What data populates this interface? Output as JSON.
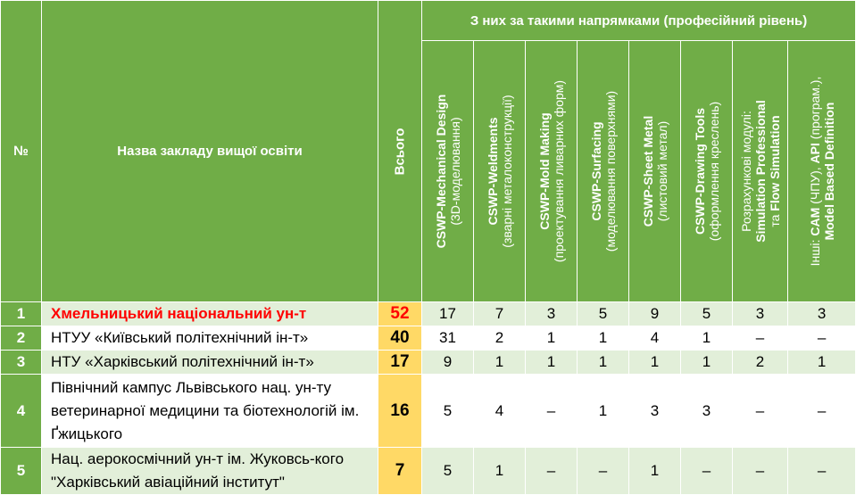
{
  "header": {
    "num_label": "№",
    "name_label": "Назва закладу вищої освіти",
    "total_label": "Всього",
    "group_label": "З них за такими напрямками (професійний рівень)",
    "directions": [
      {
        "main": "CSWP-Mechanical Design",
        "sub": "(3D-моделювання)"
      },
      {
        "main": "CSWP-Weldments",
        "sub": "(зварні металоконструкції)"
      },
      {
        "main": "CSWP-Mold Making",
        "sub": "(проектування ливарних форм)"
      },
      {
        "main": "CSWP-Surfacing",
        "sub": "(моделювання поверхнями)"
      },
      {
        "main": "CSWP-Sheet Metal",
        "sub": "(листовий метал)"
      },
      {
        "main": "CSWP-Drawing Tools",
        "sub": "(оформлення креслень)"
      }
    ],
    "calc": {
      "l1": "Розрахункові модулі:",
      "l2": "Simulation Professional",
      "l3_a": "та ",
      "l3_b": "Flow Simulation"
    },
    "other": {
      "p1": "Інші: ",
      "p2": "CAM",
      "p3": " (ЧПУ), ",
      "p4": "API",
      "p5": " (програм.),",
      "l2": "Model Based Definition"
    }
  },
  "rows": [
    {
      "num": "1",
      "name": "Хмельницький національний ун-т",
      "total": "52",
      "values": [
        "17",
        "7",
        "3",
        "5",
        "9",
        "5",
        "3",
        "3"
      ]
    },
    {
      "num": "2",
      "name": "НТУУ «Київський політехнічний ін-т»",
      "total": "40",
      "values": [
        "31",
        "2",
        "1",
        "1",
        "4",
        "1",
        "–",
        "–"
      ]
    },
    {
      "num": "3",
      "name": "НТУ «Харківський політехнічний ін-т»",
      "total": "17",
      "values": [
        "9",
        "1",
        "1",
        "1",
        "1",
        "1",
        "2",
        "1"
      ]
    },
    {
      "num": "4",
      "name": "Північний кампус Львівського нац. ун-ту ветеринарної медицини та біотехнологій ім. Ґжицького",
      "total": "16",
      "values": [
        "5",
        "4",
        "–",
        "1",
        "3",
        "3",
        "–",
        "–"
      ]
    },
    {
      "num": "5",
      "name": "Нац. аерокосмічний ун-т ім. Жуковсь-кого \"Харківський авіаційний інститут\"",
      "total": "7",
      "values": [
        "5",
        "1",
        "–",
        "–",
        "1",
        "–",
        "–",
        "–"
      ]
    }
  ]
}
